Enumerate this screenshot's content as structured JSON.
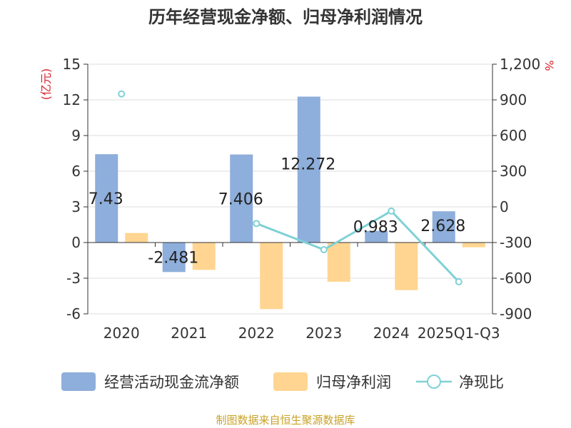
{
  "chart_data": {
    "type": "bar",
    "title": "历年经营现金净额、归母净利润情况",
    "categories": [
      "2020",
      "2021",
      "2022",
      "2023",
      "2024",
      "2025Q1-Q3"
    ],
    "y_left": {
      "unit": "(亿元)",
      "ticks": [
        "15",
        "12",
        "9",
        "6",
        "3",
        "0",
        "-3",
        "-6"
      ],
      "min": -6,
      "max": 15
    },
    "y_right": {
      "unit": "%",
      "ticks": [
        "1,200",
        "900",
        "600",
        "300",
        "0",
        "-300",
        "-600",
        "-900"
      ],
      "min": -900,
      "max": 1200
    },
    "series": [
      {
        "name": "经营活动现金流净额",
        "type": "bar",
        "axis": "left",
        "color": "#8eaedb",
        "values": [
          7.43,
          -2.481,
          7.406,
          12.272,
          0.983,
          2.628
        ],
        "labels": [
          "7.43",
          "-2.481",
          "7.406",
          "12.272",
          "0.983",
          "2.628"
        ]
      },
      {
        "name": "归母净利润",
        "type": "bar",
        "axis": "left",
        "color": "#ffd591",
        "values": [
          0.8,
          -2.3,
          -5.6,
          -3.3,
          -4.0,
          -0.4
        ]
      },
      {
        "name": "净现比",
        "type": "line",
        "axis": "right",
        "color": "#7fd1d6",
        "values": [
          950,
          null,
          -140,
          -360,
          -35,
          -630
        ]
      }
    ],
    "legend_position": "bottom",
    "source": "制图数据来自恒生聚源数据库",
    "source_color": "#c9a227",
    "unit_color": "#d9232d",
    "grid": true
  }
}
